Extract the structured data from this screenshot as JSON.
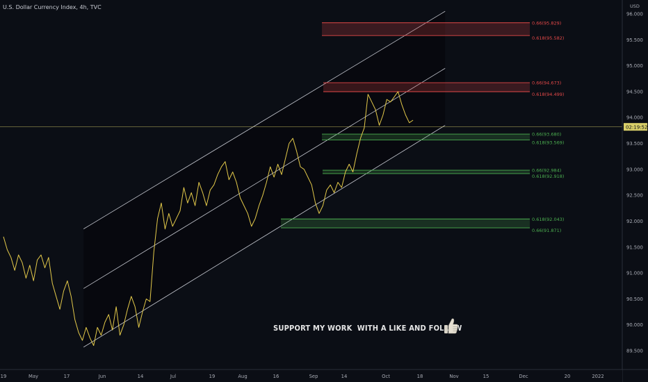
{
  "header": {
    "title": "U.S. Dollar Currency Index, 4h, TVC",
    "currency": "USD"
  },
  "overlay": {
    "message": "SUPPORT MY WORK  WITH A LIKE AND FOLLOW"
  },
  "current_price": {
    "label": "02:19:52",
    "value": 93.82
  },
  "colors": {
    "background": "#0b0e15",
    "price_line": "#e3c94a",
    "channel": "#c4c7cf",
    "resistance": "#e34848",
    "support": "#4caf50",
    "axis_text": "#a8abb4",
    "crosshair": "#d9cf69"
  },
  "chart_data": {
    "type": "line",
    "title": "U.S. Dollar Currency Index, 4h, TVC",
    "xlabel": "",
    "ylabel": "",
    "x_tick_labels": [
      "19",
      "May",
      "17",
      "Jun",
      "14",
      "Jul",
      "19",
      "Aug",
      "16",
      "Sep",
      "14",
      "Oct",
      "18",
      "Nov",
      "15",
      "Dec",
      "20",
      "2022"
    ],
    "y_tick_labels": [
      "96.000",
      "95.500",
      "95.000",
      "94.500",
      "94.000",
      "93.500",
      "93.000",
      "92.500",
      "92.000",
      "91.500",
      "91.000",
      "90.500",
      "90.000",
      "89.500"
    ],
    "ylim": [
      89.35,
      96.15
    ],
    "y_axis_side": "right",
    "grid": false,
    "series": [
      {
        "values": [
          91.7,
          91.45,
          91.3,
          91.05,
          91.35,
          91.2,
          90.9,
          91.15,
          90.85,
          91.25,
          91.35,
          91.1,
          91.3,
          90.8,
          90.55,
          90.3,
          90.65,
          90.85,
          90.55,
          90.1,
          89.85,
          89.7,
          89.95,
          89.75,
          89.6,
          89.95,
          89.8,
          90.05,
          90.2,
          89.9,
          90.35,
          89.8,
          90.0,
          90.3,
          90.55,
          90.35,
          89.95,
          90.25,
          90.5,
          90.45,
          91.4,
          92.05,
          92.35,
          91.85,
          92.15,
          91.9,
          92.05,
          92.2,
          92.65,
          92.35,
          92.55,
          92.3,
          92.75,
          92.55,
          92.3,
          92.6,
          92.7,
          92.9,
          93.05,
          93.15,
          92.8,
          92.95,
          92.75,
          92.45,
          92.3,
          92.15,
          91.9,
          92.05,
          92.3,
          92.5,
          92.75,
          93.05,
          92.85,
          93.1,
          92.9,
          93.2,
          93.5,
          93.6,
          93.35,
          93.05,
          93.0,
          92.85,
          92.7,
          92.35,
          92.15,
          92.3,
          92.6,
          92.7,
          92.55,
          92.75,
          92.65,
          92.95,
          93.1,
          92.95,
          93.3,
          93.6,
          93.8,
          94.45,
          94.3,
          94.15,
          93.85,
          94.05,
          94.35,
          94.3,
          94.4,
          94.5,
          94.25,
          94.05,
          93.9,
          93.95
        ],
        "x_range": [
          "2021-04-19",
          "2021-10-15"
        ],
        "color": "#e3c94a"
      }
    ],
    "channel": {
      "upper": {
        "from": [
          "2021-05-24",
          91.85
        ],
        "to": [
          "2021-10-29",
          96.05
        ]
      },
      "middle": {
        "from": [
          "2021-05-24",
          90.7
        ],
        "to": [
          "2021-10-29",
          94.95
        ]
      },
      "lower": {
        "from": [
          "2021-05-24",
          89.57
        ],
        "to": [
          "2021-10-29",
          93.85
        ]
      }
    },
    "zones": [
      {
        "kind": "resistance",
        "top": 95.829,
        "bottom": 95.582,
        "top_label": "0.66(95.829)",
        "bottom_label": "0.618(95.582)"
      },
      {
        "kind": "resistance",
        "top": 94.673,
        "bottom": 94.499,
        "top_label": "0.66(94.673)",
        "bottom_label": "0.618(94.499)"
      },
      {
        "kind": "support",
        "top": 93.68,
        "bottom": 93.569,
        "top_label": "0.66(93.680)",
        "bottom_label": "0.618(93.569)"
      },
      {
        "kind": "support",
        "top": 92.984,
        "bottom": 92.918,
        "top_label": "0.66(92.984)",
        "bottom_label": "0.618(92.918)"
      },
      {
        "kind": "support",
        "top": 92.043,
        "bottom": 91.871,
        "top_label": "0.618(92.043)",
        "bottom_label": "0.66(91.871)"
      }
    ]
  }
}
